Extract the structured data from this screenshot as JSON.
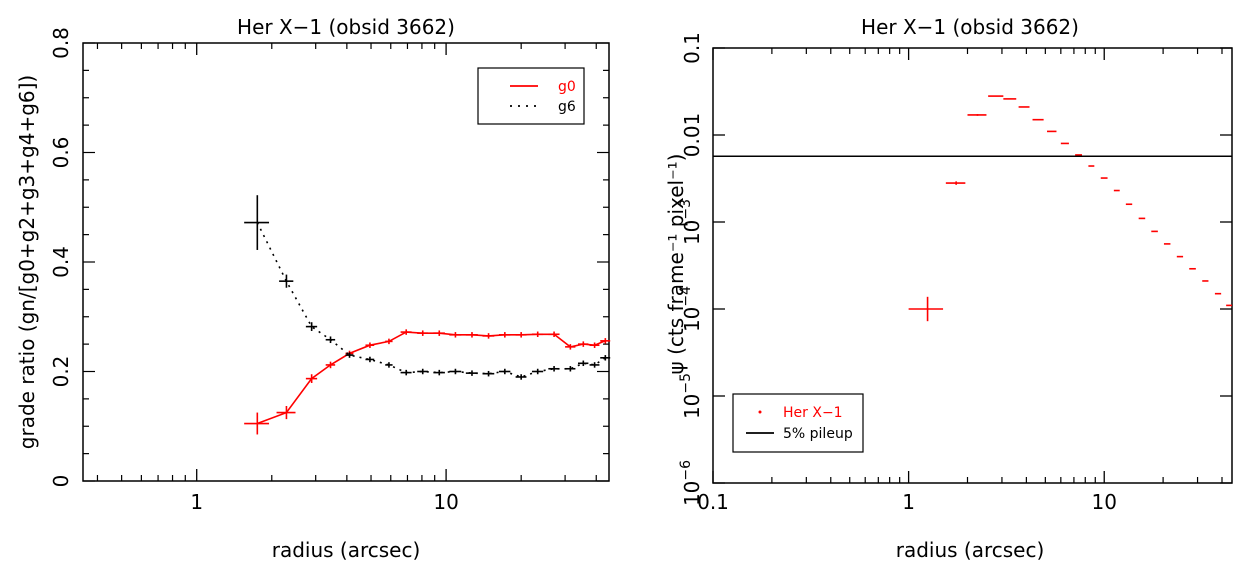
{
  "chart_data": [
    {
      "type": "scatter",
      "title": "Her X−1 (obsid 3662)",
      "xlabel": "radius (arcsec)",
      "ylabel": "grade ratio (gn/[g0+g2+g3+g4+g6])",
      "xscale": "log",
      "xlim": [
        0.35,
        45
      ],
      "ylim": [
        0,
        0.8
      ],
      "grid": false,
      "legend_position": "top-right",
      "xticks": [
        {
          "v": 1,
          "label": "1"
        },
        {
          "v": 10,
          "label": "10"
        }
      ],
      "yticks": [
        {
          "v": 0,
          "label": "0"
        },
        {
          "v": 0.2,
          "label": "0.2"
        },
        {
          "v": 0.4,
          "label": "0.4"
        },
        {
          "v": 0.6,
          "label": "0.6"
        },
        {
          "v": 0.8,
          "label": "0.8"
        }
      ],
      "series": [
        {
          "name": "g0",
          "color": "#ff0000",
          "line": "solid",
          "x": [
            1.75,
            2.29,
            2.89,
            3.44,
            4.1,
            4.95,
            5.9,
            6.92,
            8.06,
            9.39,
            10.9,
            12.7,
            14.8,
            17.2,
            20.0,
            23.3,
            27.1,
            31.5,
            35.5,
            39.4,
            43.5
          ],
          "y": [
            0.105,
            0.125,
            0.187,
            0.212,
            0.233,
            0.248,
            0.255,
            0.272,
            0.27,
            0.27,
            0.267,
            0.267,
            0.265,
            0.267,
            0.267,
            0.268,
            0.268,
            0.245,
            0.25,
            0.248,
            0.256
          ],
          "xerr": [
            0.2,
            0.2,
            0.15,
            0.15,
            0.15,
            0.2,
            0.2,
            0.35,
            0.4,
            0.5,
            0.6,
            0.7,
            0.8,
            0.9,
            1.0,
            1.2,
            1.4,
            1.5,
            1.7,
            1.8,
            2.0
          ],
          "yerr": [
            0.02,
            0.012,
            0.008,
            0.006,
            0.005,
            0.005,
            0.005,
            0.005,
            0.005,
            0.005,
            0.005,
            0.005,
            0.005,
            0.005,
            0.005,
            0.005,
            0.005,
            0.005,
            0.005,
            0.005,
            0.005
          ]
        },
        {
          "name": "g6",
          "color": "#000000",
          "line": "dotted",
          "x": [
            1.75,
            2.29,
            2.89,
            3.44,
            4.1,
            4.95,
            5.9,
            6.92,
            8.06,
            9.39,
            10.9,
            12.7,
            14.8,
            17.2,
            20.0,
            23.3,
            27.1,
            31.5,
            35.5,
            39.4,
            43.5
          ],
          "y": [
            0.472,
            0.365,
            0.282,
            0.258,
            0.23,
            0.222,
            0.212,
            0.198,
            0.2,
            0.198,
            0.2,
            0.197,
            0.196,
            0.2,
            0.19,
            0.2,
            0.205,
            0.205,
            0.215,
            0.212,
            0.225
          ],
          "xerr": [
            0.2,
            0.15,
            0.15,
            0.15,
            0.15,
            0.2,
            0.2,
            0.35,
            0.4,
            0.5,
            0.6,
            0.7,
            0.8,
            0.9,
            1.0,
            1.2,
            1.4,
            1.5,
            1.7,
            1.8,
            2.0
          ],
          "yerr": [
            0.05,
            0.012,
            0.008,
            0.006,
            0.005,
            0.005,
            0.005,
            0.005,
            0.005,
            0.005,
            0.005,
            0.005,
            0.005,
            0.005,
            0.005,
            0.005,
            0.005,
            0.005,
            0.005,
            0.005,
            0.005
          ]
        }
      ]
    },
    {
      "type": "scatter",
      "title": "Her X−1 (obsid 3662)",
      "xlabel": "radius (arcsec)",
      "ylabel": "ψ (cts frame⁻¹ pixel⁻¹)",
      "xscale": "log",
      "yscale": "log",
      "xlim": [
        0.1,
        45
      ],
      "ylim": [
        1e-06,
        0.1
      ],
      "grid": false,
      "legend_position": "bottom-left",
      "xticks": [
        {
          "v": 0.1,
          "label": "0.1"
        },
        {
          "v": 1,
          "label": "1"
        },
        {
          "v": 10,
          "label": "10"
        }
      ],
      "yticks": [
        {
          "v": 1e-06,
          "base": "10",
          "exp": "−6"
        },
        {
          "v": 1e-05,
          "base": "10",
          "exp": "−5"
        },
        {
          "v": 0.0001,
          "base": "10",
          "exp": "−4"
        },
        {
          "v": 0.001,
          "base": "10",
          "exp": "−3"
        },
        {
          "v": 0.01,
          "label": "0.01"
        },
        {
          "v": 0.1,
          "label": "0.1"
        }
      ],
      "series": [
        {
          "name": "Her X−1",
          "color": "#ff0000",
          "x": [
            1.25,
            1.75,
            2.25,
            2.8,
            3.3,
            3.9,
            4.6,
            5.4,
            6.3,
            7.4,
            8.6,
            10.0,
            11.6,
            13.4,
            15.6,
            18.1,
            21.0,
            24.4,
            28.3,
            32.9,
            38.2,
            43.5
          ],
          "y": [
            0.0001,
            0.0028,
            0.017,
            0.028,
            0.026,
            0.021,
            0.015,
            0.011,
            0.008,
            0.0059,
            0.0044,
            0.0032,
            0.0023,
            0.0016,
            0.0011,
            0.00078,
            0.00056,
            0.0004,
            0.00029,
            0.00021,
            0.00015,
            0.00011
          ],
          "xerr": [
            0.25,
            0.2,
            0.25,
            0.25,
            0.25,
            0.25,
            0.3,
            0.3,
            0.3,
            0.3,
            0.3,
            0.4,
            0.4,
            0.5,
            0.6,
            0.7,
            0.8,
            0.9,
            1.1,
            1.2,
            1.4,
            1.5
          ],
          "yerr_dex": [
            0.14,
            0.02,
            0.01,
            0.005,
            0.005,
            0.005,
            0.005,
            0.005,
            0.005,
            0.005,
            0.005,
            0.005,
            0.005,
            0.005,
            0.005,
            0.005,
            0.005,
            0.005,
            0.005,
            0.005,
            0.005,
            0.005
          ]
        },
        {
          "name": "5% pileup",
          "color": "#000000",
          "type": "hline",
          "y": 0.0057
        }
      ]
    }
  ]
}
